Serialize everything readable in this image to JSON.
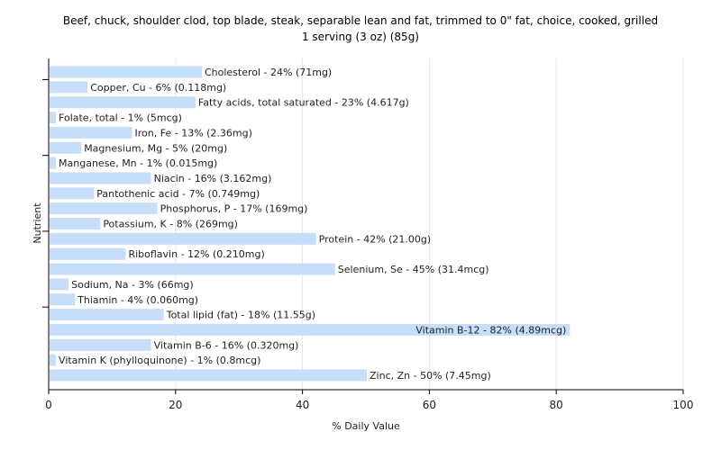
{
  "chart_data": {
    "type": "bar",
    "orientation": "horizontal",
    "title": "Beef, chuck, shoulder clod, top blade, steak, separable lean and fat, trimmed to 0\" fat, choice, cooked, grilled",
    "subtitle": "1 serving (3 oz) (85g)",
    "xlabel": "% Daily Value",
    "ylabel": "Nutrient",
    "xlim": [
      0,
      100
    ],
    "xticks": [
      0,
      20,
      40,
      60,
      80,
      100
    ],
    "grid": true,
    "bar_color": "#c6defa",
    "categories": [
      "Cholesterol",
      "Copper, Cu",
      "Fatty acids, total saturated",
      "Folate, total",
      "Iron, Fe",
      "Magnesium, Mg",
      "Manganese, Mn",
      "Niacin",
      "Pantothenic acid",
      "Phosphorus, P",
      "Potassium, K",
      "Protein",
      "Riboflavin",
      "Selenium, Se",
      "Sodium, Na",
      "Thiamin",
      "Total lipid (fat)",
      "Vitamin B-12",
      "Vitamin B-6",
      "Vitamin K (phylloquinone)",
      "Zinc, Zn"
    ],
    "values": [
      24,
      6,
      23,
      1,
      13,
      5,
      1,
      16,
      7,
      17,
      8,
      42,
      12,
      45,
      3,
      4,
      18,
      82,
      16,
      1,
      50
    ],
    "labels": [
      "Cholesterol - 24% (71mg)",
      "Copper, Cu - 6% (0.118mg)",
      "Fatty acids, total saturated - 23% (4.617g)",
      "Folate, total - 1% (5mcg)",
      "Iron, Fe - 13% (2.36mg)",
      "Magnesium, Mg - 5% (20mg)",
      "Manganese, Mn - 1% (0.015mg)",
      "Niacin - 16% (3.162mg)",
      "Pantothenic acid - 7% (0.749mg)",
      "Phosphorus, P - 17% (169mg)",
      "Potassium, K - 8% (269mg)",
      "Protein - 42% (21.00g)",
      "Riboflavin - 12% (0.210mg)",
      "Selenium, Se - 45% (31.4mcg)",
      "Sodium, Na - 3% (66mg)",
      "Thiamin - 4% (0.060mg)",
      "Total lipid (fat) - 18% (11.55g)",
      "Vitamin B-12 - 82% (4.89mcg)",
      "Vitamin B-6 - 16% (0.320mg)",
      "Vitamin K (phylloquinone) - 1% (0.8mcg)",
      "Zinc, Zn - 50% (7.45mg)"
    ]
  }
}
